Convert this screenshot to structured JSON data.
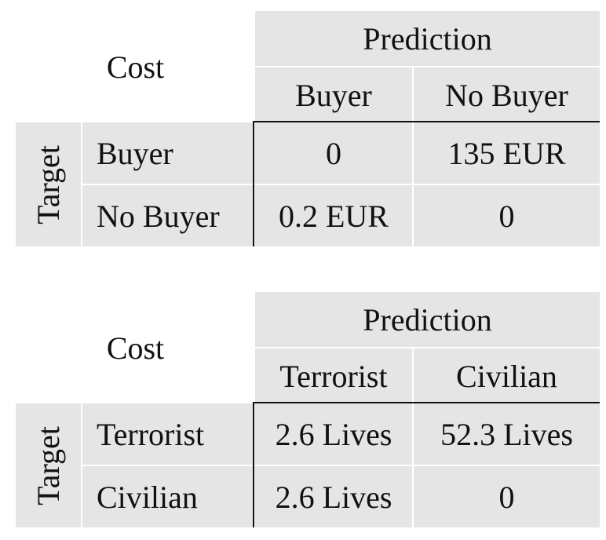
{
  "tables": [
    {
      "corner_label": "Cost",
      "header_group": "Prediction",
      "columns": [
        "Buyer",
        "No Buyer"
      ],
      "row_group": "Target",
      "rows": [
        {
          "label": "Buyer",
          "cells": [
            "0",
            "135 EUR"
          ]
        },
        {
          "label": "No Buyer",
          "cells": [
            "0.2 EUR",
            "0"
          ]
        }
      ]
    },
    {
      "corner_label": "Cost",
      "header_group": "Prediction",
      "columns": [
        "Terrorist",
        "Civilian"
      ],
      "row_group": "Target",
      "rows": [
        {
          "label": "Terrorist",
          "cells": [
            "2.6 Lives",
            "52.3 Lives"
          ]
        },
        {
          "label": "Civilian",
          "cells": [
            "2.6 Lives",
            "0"
          ]
        }
      ]
    }
  ],
  "colors": {
    "cell_shade": "#e5e5e5",
    "rule": "#111111",
    "background": "#ffffff"
  }
}
